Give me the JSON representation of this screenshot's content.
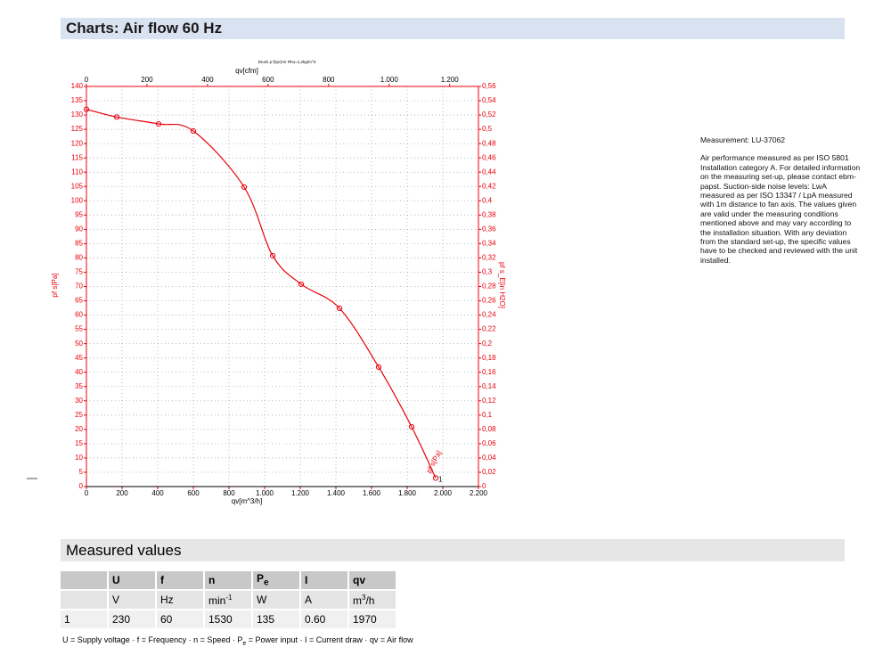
{
  "header": {
    "title": "Charts: Air flow 60 Hz"
  },
  "chart_data": {
    "type": "line",
    "title": "Druck p f(qV)Air Rho=1,2kg/m^3",
    "x_label": "qv[m^3/h]",
    "x2_label": "qv[cfm]",
    "y_label": "pf s[Pa]",
    "y2_label": "pf s_E[in H2O]",
    "x": [
      0,
      170,
      405,
      600,
      885,
      1045,
      1205,
      1420,
      1640,
      1825,
      1960
    ],
    "series": [
      {
        "name": "pf s[Pa]",
        "color": "#e8000b",
        "values": [
          132,
          129.3,
          126.9,
          124.4,
          104.8,
          80.8,
          70.8,
          62.4,
          41.8,
          20.9,
          3
        ]
      }
    ],
    "xlim": [
      0,
      2200
    ],
    "xticks": [
      0,
      200,
      400,
      600,
      800,
      {
        "value": 1000,
        "label": "1.000"
      },
      {
        "value": 1200,
        "label": "1.200"
      },
      {
        "value": 1400,
        "label": "1.400"
      },
      {
        "value": 1600,
        "label": "1.600"
      },
      {
        "value": 1800,
        "label": "1.800"
      },
      {
        "value": 2000,
        "label": "2.000"
      },
      {
        "value": 2200,
        "label": "2.200"
      }
    ],
    "x2lim": [
      0,
      1295
    ],
    "x2ticks": [
      0,
      200,
      400,
      600,
      800,
      {
        "value": 1000,
        "label": "1.000"
      },
      {
        "value": 1200,
        "label": "1.200"
      }
    ],
    "ylim": [
      0,
      140
    ],
    "yticks": [
      0,
      5,
      10,
      15,
      20,
      25,
      30,
      35,
      40,
      45,
      50,
      55,
      60,
      65,
      70,
      75,
      80,
      85,
      90,
      95,
      100,
      105,
      110,
      115,
      120,
      125,
      130,
      135,
      140
    ],
    "y2lim": [
      0,
      0.56
    ],
    "y2ticks": [
      0,
      {
        "value": 0.02,
        "label": "0,02"
      },
      {
        "value": 0.04,
        "label": "0,04"
      },
      {
        "value": 0.06,
        "label": "0,06"
      },
      {
        "value": 0.08,
        "label": "0,08"
      },
      {
        "value": 0.1,
        "label": "0,1"
      },
      {
        "value": 0.12,
        "label": "0,12"
      },
      {
        "value": 0.14,
        "label": "0,14"
      },
      {
        "value": 0.16,
        "label": "0,16"
      },
      {
        "value": 0.18,
        "label": "0,18"
      },
      {
        "value": 0.2,
        "label": "0,2"
      },
      {
        "value": 0.22,
        "label": "0,22"
      },
      {
        "value": 0.24,
        "label": "0,24"
      },
      {
        "value": 0.26,
        "label": "0,26"
      },
      {
        "value": 0.28,
        "label": "0,28"
      },
      {
        "value": 0.3,
        "label": "0,3"
      },
      {
        "value": 0.32,
        "label": "0,32"
      },
      {
        "value": 0.34,
        "label": "0,34"
      },
      {
        "value": 0.36,
        "label": "0,36"
      },
      {
        "value": 0.38,
        "label": "0,38"
      },
      {
        "value": 0.4,
        "label": "0,4"
      },
      {
        "value": 0.42,
        "label": "0,42"
      },
      {
        "value": 0.44,
        "label": "0,44"
      },
      {
        "value": 0.46,
        "label": "0,46"
      },
      {
        "value": 0.48,
        "label": "0,48"
      },
      {
        "value": 0.5,
        "label": "0,5"
      },
      {
        "value": 0.52,
        "label": "0,52"
      },
      {
        "value": 0.54,
        "label": "0,54"
      },
      {
        "value": 0.56,
        "label": "0,56"
      }
    ],
    "grid": true,
    "axis_color": "#e8000b",
    "point_label": "1"
  },
  "notes": {
    "measurement": "Measurement: LU-37062",
    "text": "Air performance measured as per ISO 5801 Installation category A. For detailed information on the measuring set-up, please contact ebm-papst. Suction-side noise levels: LwA measured as per ISO 13347 / LpA measured with 1m distance to fan axis. The values given are valid under the measuring conditions mentioned above and may vary according to the installation situation. With any deviation from the standard set-up, the specific values have to be checked and reviewed with the unit installed."
  },
  "section": {
    "title": "Measured values"
  },
  "table": {
    "header": [
      "U",
      "f",
      "n",
      {
        "main": "P",
        "sub": "e"
      },
      "I",
      "qv"
    ],
    "units": [
      "V",
      "Hz",
      {
        "main": "min",
        "sup": "-1"
      },
      "W",
      "A",
      {
        "main": "m",
        "sup": "3",
        "rest": "/h"
      }
    ],
    "rows": [
      [
        "1",
        "230",
        "60",
        "1530",
        "135",
        "0.60",
        "1970"
      ]
    ]
  },
  "footnote": {
    "a": "U = Supply voltage · f = Frequency · n = Speed · P",
    "sub": "e",
    "b": " = Power input · I = Current draw · qv = Air flow"
  }
}
